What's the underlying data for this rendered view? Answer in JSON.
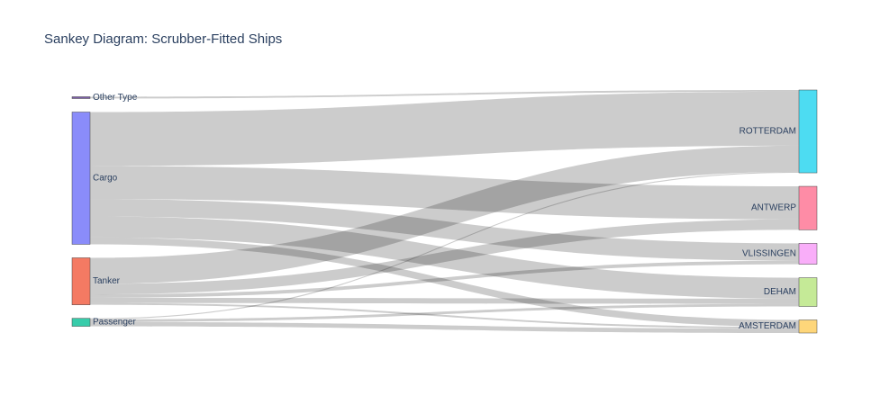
{
  "title": "Sankey Diagram: Scrubber-Fitted Ships",
  "chart_data": {
    "type": "sankey",
    "sources": [
      {
        "name": "Other Type",
        "color": "#7b5ea7"
      },
      {
        "name": "Cargo",
        "color": "#8a8cfa"
      },
      {
        "name": "Tanker",
        "color": "#f47a63"
      },
      {
        "name": "Passenger",
        "color": "#37ccaa"
      }
    ],
    "targets": [
      {
        "name": "ROTTERDAM",
        "color": "#4ddcf2"
      },
      {
        "name": "ANTWERP",
        "color": "#fe8ca6"
      },
      {
        "name": "VLISSINGEN",
        "color": "#f9aef9"
      },
      {
        "name": "DEHAM",
        "color": "#c5ea97"
      },
      {
        "name": "AMSTERDAM",
        "color": "#fed67a"
      }
    ],
    "links": [
      {
        "source": "Other Type",
        "target": "ROTTERDAM",
        "value": 1
      },
      {
        "source": "Cargo",
        "target": "ROTTERDAM",
        "value": 31
      },
      {
        "source": "Cargo",
        "target": "ANTWERP",
        "value": 19
      },
      {
        "source": "Cargo",
        "target": "VLISSINGEN",
        "value": 10
      },
      {
        "source": "Cargo",
        "target": "DEHAM",
        "value": 12
      },
      {
        "source": "Cargo",
        "target": "AMSTERDAM",
        "value": 4
      },
      {
        "source": "Tanker",
        "target": "ROTTERDAM",
        "value": 15
      },
      {
        "source": "Tanker",
        "target": "ANTWERP",
        "value": 6
      },
      {
        "source": "Tanker",
        "target": "VLISSINGEN",
        "value": 2
      },
      {
        "source": "Tanker",
        "target": "DEHAM",
        "value": 3
      },
      {
        "source": "Tanker",
        "target": "AMSTERDAM",
        "value": 1
      },
      {
        "source": "Passenger",
        "target": "ROTTERDAM",
        "value": 0.6
      },
      {
        "source": "Passenger",
        "target": "DEHAM",
        "value": 1.5
      },
      {
        "source": "Passenger",
        "target": "AMSTERDAM",
        "value": 2.5
      }
    ]
  }
}
